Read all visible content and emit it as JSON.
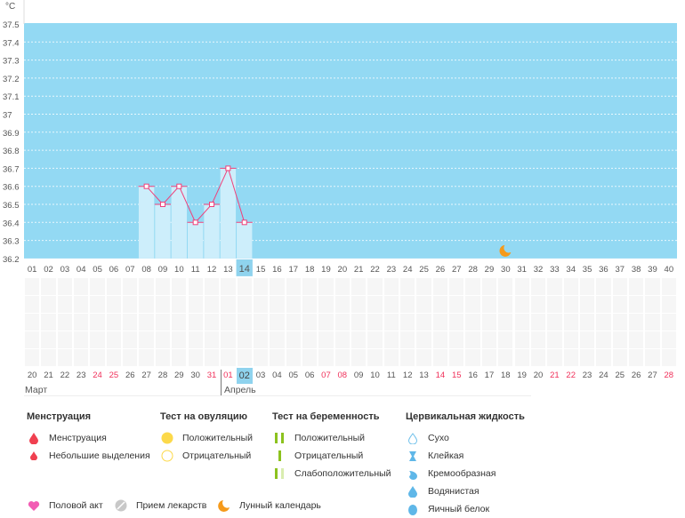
{
  "chart_data": {
    "type": "bar",
    "unit_label": "°C",
    "ylim": [
      36.2,
      37.5
    ],
    "yticks": [
      "37.5",
      "37.4",
      "37.3",
      "37.2",
      "37.1",
      "37",
      "36.9",
      "36.8",
      "36.7",
      "36.6",
      "36.5",
      "36.4",
      "36.3",
      "36.2"
    ],
    "cycle_days": [
      "01",
      "02",
      "03",
      "04",
      "05",
      "06",
      "07",
      "08",
      "09",
      "10",
      "11",
      "12",
      "13",
      "14",
      "15",
      "16",
      "17",
      "18",
      "19",
      "20",
      "21",
      "22",
      "23",
      "24",
      "25",
      "26",
      "27",
      "28",
      "29",
      "30",
      "31",
      "32",
      "33",
      "34",
      "35",
      "36",
      "37",
      "38",
      "39",
      "40"
    ],
    "temperatures": [
      {
        "day": 8,
        "value": 36.6
      },
      {
        "day": 9,
        "value": 36.5
      },
      {
        "day": 10,
        "value": 36.6
      },
      {
        "day": 11,
        "value": 36.4
      },
      {
        "day": 12,
        "value": 36.5
      },
      {
        "day": 13,
        "value": 36.7
      },
      {
        "day": 14,
        "value": 36.4
      }
    ],
    "selected_day": 14,
    "moon_day": 30,
    "colors": {
      "background": "#93d9f3",
      "bar": "#cdeefb",
      "line": "#f0407a",
      "selected": "#8fd3ee"
    }
  },
  "dates": {
    "days": [
      "20",
      "21",
      "22",
      "23",
      "24",
      "25",
      "26",
      "27",
      "28",
      "29",
      "30",
      "31",
      "01",
      "02",
      "03",
      "04",
      "05",
      "06",
      "07",
      "08",
      "09",
      "10",
      "11",
      "12",
      "13",
      "14",
      "15",
      "16",
      "17",
      "18",
      "19",
      "20",
      "21",
      "22",
      "23",
      "24",
      "25",
      "26",
      "27",
      "28"
    ],
    "weekend_indices": [
      4,
      5,
      11,
      12,
      18,
      19,
      25,
      26,
      32,
      33,
      39
    ],
    "selected_index": 13,
    "months": [
      "Март",
      "Апрель"
    ]
  },
  "legend": {
    "menstruation": {
      "title": "Менструация",
      "items": [
        "Менструация",
        "Небольшие выделения"
      ]
    },
    "ovulation": {
      "title": "Тест на овуляцию",
      "items": [
        "Положительный",
        "Отрицательный"
      ]
    },
    "pregnancy": {
      "title": "Тест на беременность",
      "items": [
        "Положительный",
        "Отрицательный",
        "Слабоположительный"
      ]
    },
    "cervical": {
      "title": "Цервикальная жидкость",
      "items": [
        "Сухо",
        "Клейкая",
        "Кремообразная",
        "Водянистая",
        "Яичный белок"
      ]
    },
    "bottom": [
      "Половой акт",
      "Прием лекарств",
      "Лунный календарь"
    ]
  }
}
